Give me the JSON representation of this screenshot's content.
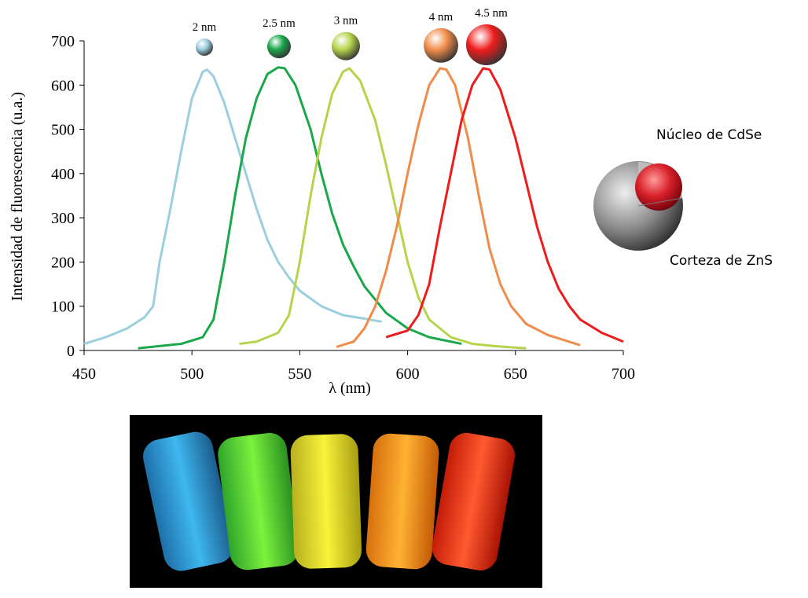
{
  "chart_data": {
    "type": "line",
    "x_label": "λ (nm)",
    "y_label": "Intensidad de fluorescencia (u.a.)",
    "xlim": [
      450,
      700
    ],
    "xticks": [
      450,
      500,
      550,
      600,
      650,
      700
    ],
    "ylim": [
      0,
      700
    ],
    "yticks": [
      0,
      100,
      200,
      300,
      400,
      500,
      600,
      700
    ],
    "annotations": [
      "Núcleo de CdSe",
      "Corteza de ZnS"
    ],
    "series": [
      {
        "name": "2 nm",
        "color": "#9ccfde",
        "x": [
          450,
          460,
          470,
          478,
          482,
          485,
          490,
          495,
          500,
          505,
          507,
          510,
          515,
          520,
          525,
          530,
          535,
          540,
          545,
          550,
          560,
          570,
          580,
          588
        ],
        "values": [
          15,
          30,
          50,
          75,
          100,
          200,
          320,
          450,
          570,
          630,
          635,
          620,
          560,
          480,
          400,
          320,
          250,
          200,
          165,
          135,
          100,
          80,
          72,
          65
        ]
      },
      {
        "name": "2.5 nm",
        "color": "#1aa84b",
        "x": [
          475,
          485,
          495,
          505,
          510,
          515,
          520,
          525,
          530,
          535,
          540,
          543,
          548,
          555,
          560,
          565,
          570,
          575,
          580,
          585,
          590,
          600,
          610,
          625
        ],
        "values": [
          5,
          10,
          15,
          30,
          70,
          200,
          350,
          480,
          570,
          625,
          640,
          638,
          600,
          500,
          400,
          310,
          240,
          190,
          145,
          115,
          85,
          50,
          30,
          15
        ]
      },
      {
        "name": "3 nm",
        "color": "#b5d44c",
        "x": [
          522,
          530,
          540,
          545,
          550,
          555,
          560,
          565,
          570,
          573,
          578,
          585,
          590,
          595,
          600,
          605,
          610,
          615,
          620,
          630,
          640,
          655
        ],
        "values": [
          15,
          20,
          40,
          80,
          200,
          350,
          480,
          580,
          630,
          638,
          610,
          520,
          420,
          310,
          200,
          120,
          70,
          50,
          30,
          15,
          10,
          5
        ]
      },
      {
        "name": "4 nm",
        "color": "#f08c4a",
        "x": [
          567,
          575,
          580,
          585,
          590,
          595,
          600,
          605,
          610,
          615,
          618,
          622,
          628,
          633,
          638,
          643,
          648,
          655,
          665,
          680
        ],
        "values": [
          8,
          20,
          50,
          100,
          180,
          280,
          400,
          510,
          600,
          638,
          635,
          600,
          480,
          350,
          230,
          150,
          100,
          60,
          35,
          12
        ]
      },
      {
        "name": "4.5 nm",
        "color": "#ee1c1c",
        "x": [
          590,
          600,
          605,
          610,
          615,
          620,
          625,
          630,
          635,
          638,
          643,
          650,
          655,
          660,
          665,
          670,
          675,
          680,
          690,
          700
        ],
        "values": [
          30,
          45,
          80,
          150,
          280,
          400,
          520,
          600,
          638,
          635,
          590,
          480,
          380,
          280,
          200,
          140,
          100,
          70,
          40,
          20
        ]
      }
    ]
  }
}
